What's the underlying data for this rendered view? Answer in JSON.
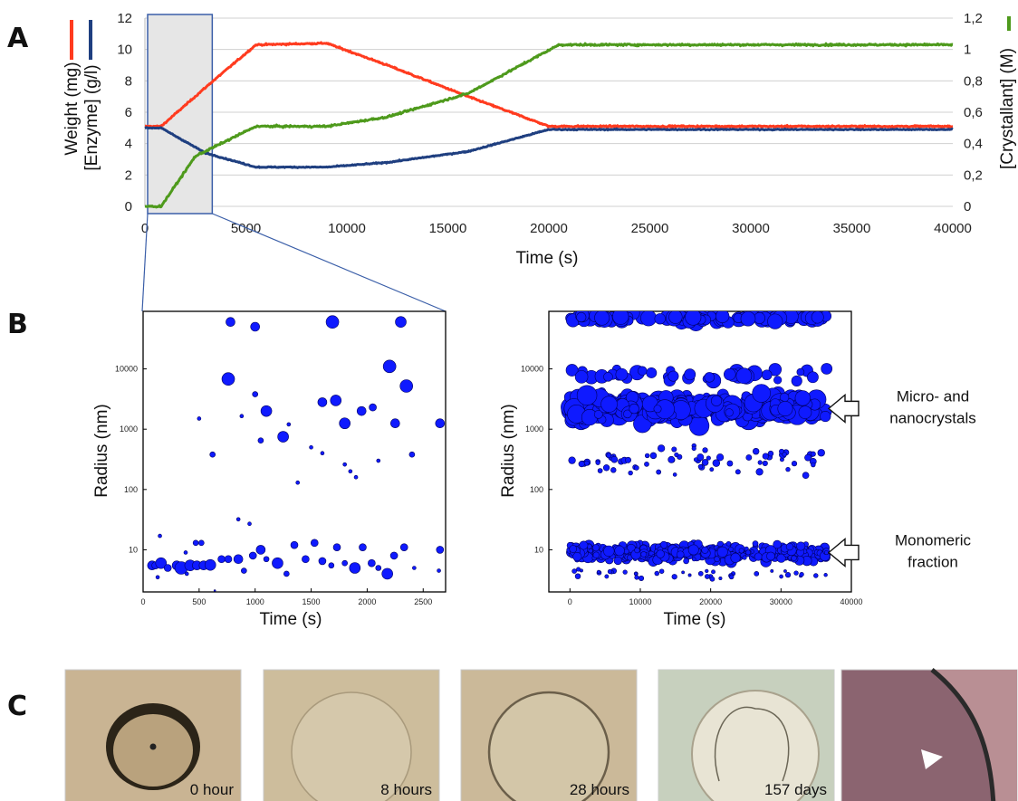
{
  "panel_letters": {
    "a": "A",
    "b": "B",
    "c": "C"
  },
  "chart_data": [
    {
      "type": "line",
      "panel": "A",
      "xlabel": "Time (s)",
      "ylabel_left_1": "Weight (mg)",
      "ylabel_left_2": "[Enzyme] (g/l)",
      "ylabel_right": "[Crystallant] (M)",
      "xlim": [
        0,
        40000
      ],
      "ylim_left": [
        0,
        12
      ],
      "ylim_right": [
        0,
        1.2
      ],
      "x_ticks": [
        "0",
        "5000",
        "10000",
        "15000",
        "20000",
        "25000",
        "30000",
        "35000",
        "40000"
      ],
      "y_ticks_left": [
        "0",
        "2",
        "4",
        "6",
        "8",
        "10",
        "12"
      ],
      "y_ticks_right": [
        "0",
        "0,2",
        "0,4",
        "0,6",
        "0,8",
        "1",
        "1,2"
      ],
      "highlight_range": [
        0,
        3200
      ],
      "colors": {
        "weight": "#ff3b1f",
        "enzyme": "#1f3f80",
        "crystallant": "#4e9a1c",
        "highlight": "#e6e6e6",
        "highlight_border": "#3a5ea8"
      },
      "series": [
        {
          "key": "weight",
          "axis": "left",
          "x": [
            0,
            800,
            3200,
            5500,
            9000,
            12000,
            16000,
            20000,
            40000
          ],
          "values": [
            5.1,
            5.1,
            7.8,
            10.3,
            10.4,
            9.0,
            7.0,
            5.1,
            5.1
          ]
        },
        {
          "key": "enzyme",
          "axis": "left",
          "x": [
            0,
            800,
            3000,
            5500,
            9000,
            12000,
            16000,
            20000,
            40000
          ],
          "values": [
            5.0,
            5.0,
            3.4,
            2.5,
            2.5,
            2.8,
            3.5,
            4.9,
            4.9
          ]
        },
        {
          "key": "crystallant",
          "axis": "right",
          "x": [
            0,
            800,
            2500,
            5500,
            9000,
            12000,
            16000,
            20500,
            40000
          ],
          "values": [
            0,
            0,
            0.32,
            0.51,
            0.51,
            0.57,
            0.72,
            1.03,
            1.03
          ]
        }
      ]
    },
    {
      "type": "scatter",
      "panel": "B-left",
      "xlabel": "Time (s)",
      "ylabel": "Radius (nm)",
      "xlim": [
        0,
        2700
      ],
      "ylim_log": [
        2,
        90000
      ],
      "x_ticks": [
        "0",
        "500",
        "1000",
        "1500",
        "2000",
        "2500"
      ],
      "y_ticks": [
        "10",
        "100",
        "1000",
        "10000"
      ],
      "x_tick_values": [
        0,
        500,
        1000,
        1500,
        2000,
        2500
      ],
      "y_tick_values": [
        10,
        100,
        1000,
        10000
      ],
      "points": [
        [
          80,
          5.5,
          5
        ],
        [
          110,
          5.5,
          4
        ],
        [
          160,
          6,
          6
        ],
        [
          150,
          17,
          2
        ],
        [
          130,
          3.5,
          2
        ],
        [
          220,
          5,
          4
        ],
        [
          300,
          5.5,
          5
        ],
        [
          340,
          5,
          7
        ],
        [
          420,
          5.5,
          6
        ],
        [
          480,
          5.5,
          5
        ],
        [
          540,
          5.5,
          5
        ],
        [
          600,
          5.6,
          6
        ],
        [
          520,
          13,
          3
        ],
        [
          470,
          13,
          3
        ],
        [
          380,
          9,
          2
        ],
        [
          390,
          4,
          2
        ],
        [
          640,
          2.1,
          1
        ],
        [
          700,
          7,
          4
        ],
        [
          760,
          7,
          4
        ],
        [
          850,
          7,
          5
        ],
        [
          900,
          4.5,
          3
        ],
        [
          980,
          8,
          4
        ],
        [
          1050,
          10,
          5
        ],
        [
          1100,
          7,
          3
        ],
        [
          1200,
          6,
          6
        ],
        [
          1280,
          4,
          3
        ],
        [
          1350,
          12,
          4
        ],
        [
          1450,
          7,
          4
        ],
        [
          1530,
          13,
          4
        ],
        [
          1600,
          6.5,
          4
        ],
        [
          1680,
          5.5,
          3
        ],
        [
          1730,
          11,
          4
        ],
        [
          1800,
          6,
          3
        ],
        [
          1890,
          5,
          6
        ],
        [
          1960,
          11,
          4
        ],
        [
          2040,
          6,
          4
        ],
        [
          2100,
          5,
          3
        ],
        [
          2180,
          4,
          6
        ],
        [
          2240,
          8,
          4
        ],
        [
          2330,
          11,
          4
        ],
        [
          2420,
          5,
          2
        ],
        [
          2650,
          10,
          4
        ],
        [
          2640,
          4.5,
          2
        ],
        [
          850,
          32,
          2
        ],
        [
          950,
          27,
          2
        ],
        [
          780,
          60000,
          5
        ],
        [
          1000,
          50000,
          5
        ],
        [
          1690,
          60000,
          7
        ],
        [
          2300,
          60000,
          6
        ],
        [
          760,
          6800,
          7
        ],
        [
          1000,
          3800,
          3
        ],
        [
          1100,
          2000,
          6
        ],
        [
          1250,
          750,
          6
        ],
        [
          1600,
          2800,
          5
        ],
        [
          1720,
          3000,
          6
        ],
        [
          1800,
          1250,
          6
        ],
        [
          1950,
          2000,
          5
        ],
        [
          2050,
          2300,
          4
        ],
        [
          2200,
          11000,
          7
        ],
        [
          2350,
          5200,
          7
        ],
        [
          2650,
          1250,
          5
        ],
        [
          880,
          1650,
          2
        ],
        [
          620,
          380,
          3
        ],
        [
          500,
          1500,
          2
        ],
        [
          1300,
          1200,
          2
        ],
        [
          1500,
          500,
          2
        ],
        [
          1600,
          400,
          2
        ],
        [
          1800,
          260,
          2
        ],
        [
          1850,
          200,
          2
        ],
        [
          1900,
          160,
          2
        ],
        [
          2100,
          300,
          2
        ],
        [
          2250,
          1250,
          5
        ],
        [
          2400,
          380,
          3
        ],
        [
          1050,
          650,
          3
        ],
        [
          1380,
          130,
          2
        ]
      ]
    },
    {
      "type": "scatter",
      "panel": "B-right",
      "xlabel": "Time (s)",
      "ylabel": "Radius (nm)",
      "xlim": [
        -3000,
        40000
      ],
      "ylim_log": [
        2,
        90000
      ],
      "x_ticks": [
        "0",
        "10000",
        "20000",
        "30000",
        "40000"
      ],
      "y_ticks": [
        "10",
        "100",
        "1000",
        "10000"
      ],
      "x_tick_values": [
        0,
        10000,
        20000,
        30000,
        40000
      ],
      "y_tick_values": [
        10,
        100,
        1000,
        10000
      ],
      "clusters": [
        {
          "x_range": [
            0,
            36500
          ],
          "y_center": 9,
          "y_spread": 0.28,
          "count": 420,
          "r_range": [
            2,
            6
          ]
        },
        {
          "x_range": [
            0,
            36500
          ],
          "y_center": 2200,
          "y_spread": 0.42,
          "count": 380,
          "r_range": [
            4,
            11
          ]
        },
        {
          "x_range": [
            0,
            36500
          ],
          "y_center": 70000,
          "y_spread": 0.15,
          "count": 110,
          "r_range": [
            5,
            9
          ]
        },
        {
          "x_range": [
            0,
            36500
          ],
          "y_center": 8000,
          "y_spread": 0.25,
          "count": 40,
          "r_range": [
            4,
            9
          ]
        },
        {
          "x_range": [
            0,
            36500
          ],
          "y_center": 300,
          "y_spread": 0.45,
          "count": 70,
          "r_range": [
            2,
            4
          ]
        },
        {
          "x_range": [
            0,
            36500
          ],
          "y_center": 4,
          "y_spread": 0.2,
          "count": 40,
          "r_range": [
            1.5,
            3
          ]
        }
      ],
      "annotations": [
        {
          "lines": [
            "Micro- and",
            "nanocrystals"
          ],
          "y_value": 2200
        },
        {
          "lines": [
            "Monomeric",
            "fraction"
          ],
          "y_value": 9
        }
      ]
    }
  ],
  "photos": [
    {
      "label": "0 hour",
      "bg": "#c9b493",
      "style": "drop"
    },
    {
      "label": "8 hours",
      "bg": "#cdbd9c",
      "style": "circle"
    },
    {
      "label": "28 hours",
      "bg": "#cbb999",
      "style": "ring"
    },
    {
      "label": "157 days",
      "bg": "#c4c6b5",
      "style": "tint"
    },
    {
      "label": "",
      "bg": "#8b6470",
      "style": "edge"
    }
  ]
}
